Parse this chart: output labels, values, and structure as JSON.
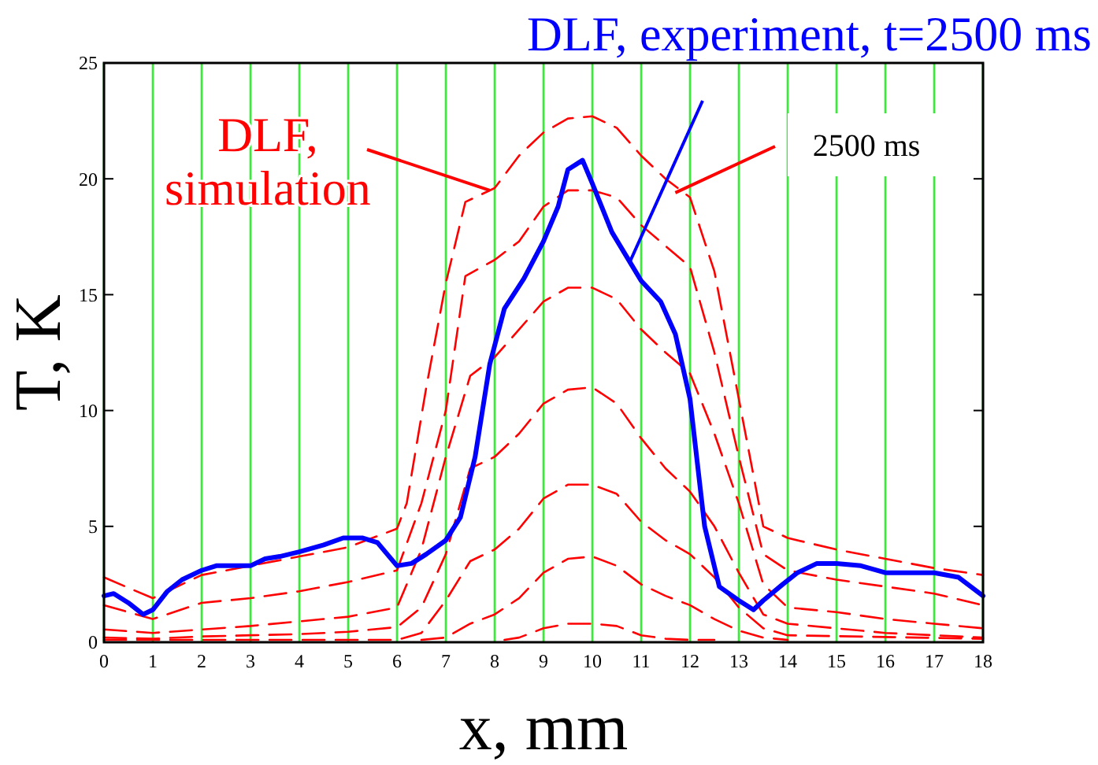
{
  "chart_data": {
    "type": "line",
    "title": "DLF, experiment, t=2500 ms",
    "xlabel": "x, mm",
    "ylabel": "T, K",
    "xlim": [
      0,
      18
    ],
    "ylim": [
      0,
      25
    ],
    "xticks": [
      0,
      1,
      2,
      3,
      4,
      5,
      6,
      7,
      8,
      9,
      10,
      11,
      12,
      13,
      14,
      15,
      16,
      17,
      18
    ],
    "yticks": [
      0,
      5,
      10,
      15,
      20,
      25
    ],
    "grid": "x",
    "annotations": [
      {
        "text": "DLF, simulation",
        "x": 7.9,
        "y": 19.5
      },
      {
        "text": "2500 ms",
        "x": 11.7,
        "y": 19.4
      }
    ],
    "series": [
      {
        "color": "#ff0000",
        "line_style": "dashed",
        "x": [
          0,
          1,
          2,
          3,
          4,
          5,
          6,
          6.2,
          6.6,
          7,
          7.4,
          8,
          8.5,
          9,
          9.5,
          10,
          10.5,
          11,
          11.5,
          12,
          12.5,
          13,
          13.5,
          14,
          15,
          16,
          17,
          18
        ],
        "values": [
          2.8,
          1.9,
          2.9,
          3.3,
          3.7,
          4.1,
          4.9,
          6,
          11,
          15.5,
          19,
          19.6,
          21,
          22,
          22.6,
          22.7,
          22.2,
          21,
          20,
          19.2,
          16,
          10.5,
          5,
          4.5,
          4,
          3.6,
          3.2,
          2.9
        ]
      },
      {
        "color": "#ff0000",
        "line_style": "dashed",
        "x": [
          0,
          1,
          2,
          3,
          4,
          5,
          6,
          6.5,
          7,
          7.4,
          8,
          8.5,
          9,
          9.5,
          10,
          10.5,
          11,
          11.5,
          12,
          12.5,
          13,
          13.5,
          14,
          15,
          16,
          17,
          18
        ],
        "values": [
          1.6,
          1,
          1.7,
          1.9,
          2.2,
          2.6,
          3.1,
          6,
          10,
          15.8,
          16.5,
          17.3,
          18.8,
          19.5,
          19.5,
          19.2,
          18,
          17.1,
          16.2,
          12.5,
          8,
          3.8,
          3.1,
          2.7,
          2.4,
          2.1,
          1.6
        ]
      },
      {
        "color": "#ff0000",
        "line_style": "dashed",
        "x": [
          0,
          1,
          2,
          3,
          4,
          5,
          6,
          6.5,
          7,
          7.5,
          8,
          8.5,
          9,
          9.5,
          10,
          10.5,
          11,
          11.5,
          12,
          12.5,
          13,
          13.5,
          14,
          15,
          16,
          17,
          18
        ],
        "values": [
          0.55,
          0.4,
          0.55,
          0.7,
          0.9,
          1.1,
          1.5,
          4,
          8,
          11.5,
          12.3,
          13.5,
          14.7,
          15.3,
          15.3,
          14.8,
          13.5,
          12.5,
          11.6,
          9,
          6,
          2.5,
          1.5,
          1.3,
          1,
          0.8,
          0.6
        ]
      },
      {
        "color": "#ff0000",
        "line_style": "dashed",
        "x": [
          0,
          1,
          2,
          3,
          4,
          5,
          6,
          6.5,
          7,
          7.5,
          8,
          8.5,
          9,
          9.5,
          10,
          10.5,
          11,
          11.5,
          12,
          12.5,
          13,
          13.5,
          14,
          15,
          16,
          17,
          18
        ],
        "values": [
          0.2,
          0.15,
          0.25,
          0.3,
          0.35,
          0.45,
          0.65,
          1.5,
          3.8,
          7.5,
          8,
          9,
          10.3,
          10.9,
          11,
          10.3,
          8.8,
          7.5,
          6.5,
          5,
          3,
          1.2,
          0.8,
          0.6,
          0.4,
          0.3,
          0.2
        ]
      },
      {
        "color": "#ff0000",
        "line_style": "dashed",
        "x": [
          0,
          6,
          6.5,
          7,
          7.5,
          8,
          8.5,
          9,
          9.5,
          10,
          10.5,
          11,
          11.5,
          12,
          12.5,
          13,
          13.5,
          14,
          18
        ],
        "values": [
          0.1,
          0.1,
          0.4,
          1.8,
          3.5,
          4,
          4.9,
          6.2,
          6.8,
          6.8,
          6.4,
          5.2,
          4.4,
          3.8,
          2.8,
          1.5,
          0.6,
          0.3,
          0.15
        ]
      },
      {
        "color": "#ff0000",
        "line_style": "dashed",
        "x": [
          6.5,
          7,
          7.5,
          8,
          8.5,
          9,
          9.5,
          10,
          10.5,
          11,
          11.5,
          12,
          12.5,
          13,
          13.5,
          14
        ],
        "values": [
          0.1,
          0.2,
          0.8,
          1.2,
          1.9,
          3,
          3.6,
          3.7,
          3.3,
          2.5,
          2,
          1.6,
          1,
          0.5,
          0.2,
          0.1
        ]
      },
      {
        "color": "#ff0000",
        "line_style": "dashed",
        "x": [
          8.2,
          8.5,
          9,
          9.5,
          10,
          10.5,
          11,
          11.5,
          12,
          12.5
        ],
        "values": [
          0.1,
          0.2,
          0.6,
          0.8,
          0.8,
          0.7,
          0.3,
          0.15,
          0.1,
          0.1
        ]
      },
      {
        "color": "#0000ff",
        "line_style": "solid",
        "x": [
          0,
          0.2,
          0.5,
          0.8,
          1,
          1.3,
          1.6,
          2,
          2.3,
          3,
          3.3,
          3.6,
          4,
          4.5,
          4.9,
          5.3,
          5.6,
          6,
          6.3,
          6.6,
          7,
          7.3,
          7.6,
          7.9,
          8.2,
          8.6,
          9,
          9.3,
          9.5,
          9.8,
          10,
          10.4,
          10.8,
          11,
          11.4,
          11.7,
          12,
          12.3,
          12.6,
          13,
          13.3,
          13.5,
          13.9,
          14.2,
          14.6,
          15,
          15.5,
          16,
          17,
          17.5,
          18
        ],
        "values": [
          2,
          2.1,
          1.7,
          1.2,
          1.4,
          2.2,
          2.7,
          3.1,
          3.3,
          3.3,
          3.6,
          3.7,
          3.9,
          4.2,
          4.5,
          4.5,
          4.3,
          3.3,
          3.4,
          3.8,
          4.4,
          5.4,
          8,
          12,
          14.4,
          15.7,
          17.3,
          18.8,
          20.4,
          20.8,
          19.8,
          17.7,
          16.3,
          15.6,
          14.7,
          13.3,
          10.5,
          5,
          2.4,
          1.8,
          1.4,
          1.8,
          2.5,
          3,
          3.4,
          3.4,
          3.3,
          3,
          3,
          2.8,
          2
        ]
      }
    ]
  }
}
